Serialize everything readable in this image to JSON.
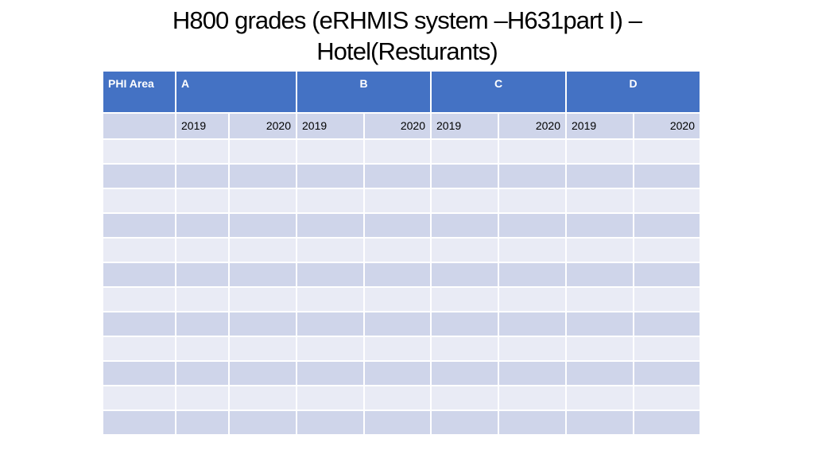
{
  "title": {
    "line1": "H800 grades (eRHMIS system –H631part I) –",
    "line2": "Hotel(Resturants)"
  },
  "table": {
    "header": {
      "phi_area": "PHI Area",
      "groups": [
        "A",
        "B",
        "C",
        "D"
      ]
    },
    "years": [
      "2019",
      "2020",
      "2019",
      "2020",
      "2019",
      "2020",
      "2019",
      "2020"
    ],
    "empty_rows": 12
  },
  "colors": {
    "header_bg": "#4472c4",
    "row_dark": "#cfd5ea",
    "row_light": "#e9ebf5"
  }
}
